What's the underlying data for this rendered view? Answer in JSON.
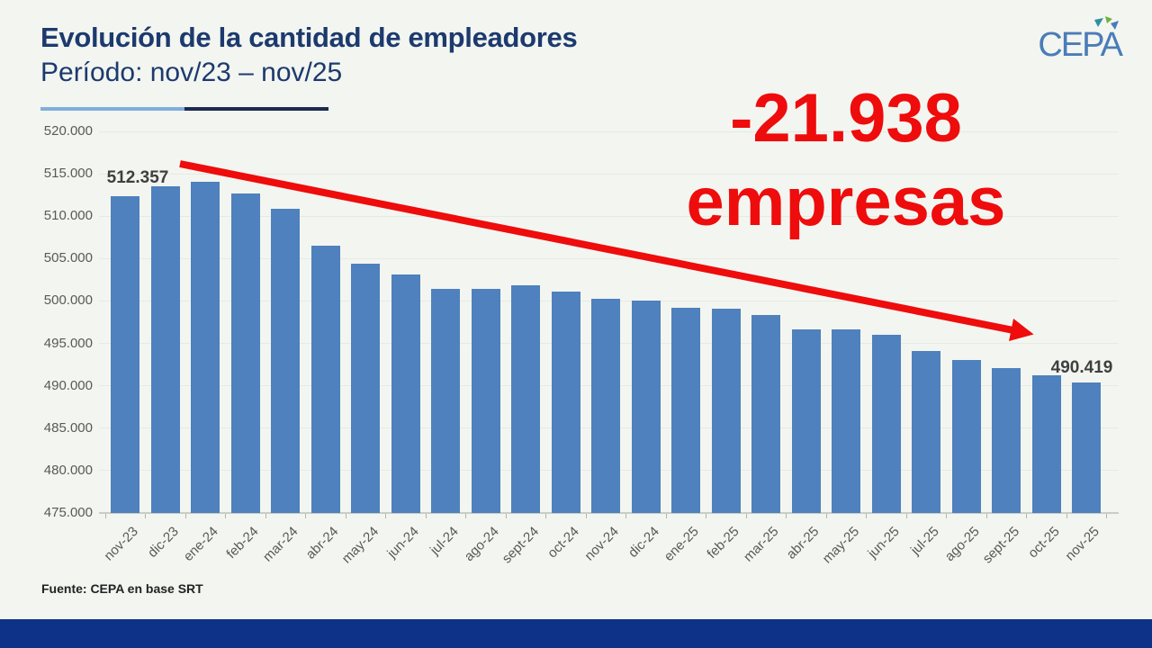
{
  "header": {
    "title": "Evolución de la cantidad de empleadores",
    "subtitle": "Período:  nov/23 – nov/25",
    "logo_text": "CEPA"
  },
  "annotation": {
    "line1": "-21.938",
    "line2": "empresas"
  },
  "footer": {
    "source": "Fuente: CEPA en base SRT"
  },
  "colors": {
    "bg": "#f3f5f0",
    "bar": "#4e81bd",
    "navy": "#1c3a6e",
    "red": "#ee0c0c",
    "grid": "#e7eae2",
    "axis": "#c9cdc6",
    "tick": "#b2b6af",
    "label_gray": "#595959",
    "point_label": "#3f3f3f",
    "footer_bar": "#0d3287",
    "logo_blue": "#4a7cb8",
    "logo_teal": "#2f8fa3",
    "logo_green": "#6cb33f",
    "underline_light": "#7fafda",
    "underline_dark": "#1a2a52"
  },
  "chart_data": {
    "type": "bar",
    "title": "Evolución de la cantidad de empleadores",
    "subtitle": "Período: nov/23 – nov/25",
    "categories": [
      "nov-23",
      "dic-23",
      "ene-24",
      "feb-24",
      "mar-24",
      "abr-24",
      "may-24",
      "jun-24",
      "jul-24",
      "ago-24",
      "sept-24",
      "oct-24",
      "nov-24",
      "dic-24",
      "ene-25",
      "feb-25",
      "mar-25",
      "abr-25",
      "may-25",
      "jun-25",
      "jul-25",
      "ago-25",
      "sept-25",
      "oct-25",
      "nov-25"
    ],
    "values": [
      512357,
      513500,
      514100,
      512700,
      510900,
      506500,
      504400,
      503100,
      501400,
      501400,
      501900,
      501100,
      500300,
      500000,
      499200,
      499100,
      498400,
      496700,
      496600,
      496000,
      494100,
      493000,
      492100,
      491200,
      490419
    ],
    "ylim": [
      475000,
      520000
    ],
    "ytick_step": 5000,
    "ytick_labels": [
      "520.000",
      "515.000",
      "510.000",
      "505.000",
      "500.000",
      "495.000",
      "490.000",
      "485.000",
      "480.000",
      "475.000"
    ],
    "grid": true,
    "legend": false,
    "point_labels": [
      {
        "index": 0,
        "text": "512.357"
      },
      {
        "index": 24,
        "text": "490.419"
      }
    ],
    "annotations": {
      "big_text": "-21.938 empresas",
      "trend_arrow": "decreasing"
    },
    "source": "Fuente: CEPA en base SRT"
  }
}
